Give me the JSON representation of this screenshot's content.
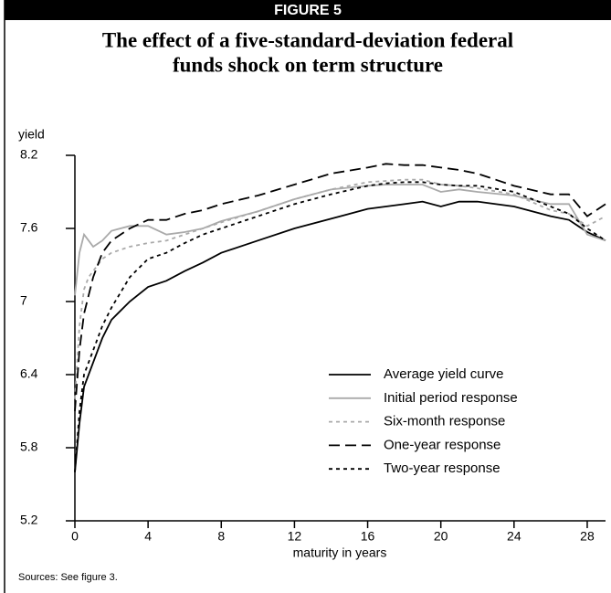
{
  "header": "FIGURE 5",
  "chart_data": {
    "type": "line",
    "title": "The effect of a five-standard-deviation federal",
    "subtitle": "funds shock on term structure",
    "ylabel": "yield",
    "xlabel": "maturity in years",
    "source": "Sources: See figure 3.",
    "x": [
      0,
      0.25,
      0.5,
      0.75,
      1,
      1.5,
      2,
      3,
      4,
      5,
      6,
      7,
      8,
      10,
      12,
      14,
      16,
      17,
      18,
      19,
      20,
      21,
      22,
      24,
      26,
      27,
      28,
      29
    ],
    "xlim": [
      0,
      29
    ],
    "xticks": [
      0,
      4,
      8,
      12,
      16,
      20,
      24,
      28
    ],
    "ylim": [
      5.2,
      8.2
    ],
    "yticks": [
      5.2,
      5.8,
      6.4,
      7.0,
      7.6,
      8.2
    ],
    "series": [
      {
        "name": "Average yield curve",
        "color": "#000000",
        "dash": "none",
        "values": [
          5.6,
          6.0,
          6.3,
          6.4,
          6.5,
          6.7,
          6.85,
          7.0,
          7.12,
          7.17,
          7.25,
          7.32,
          7.4,
          7.5,
          7.6,
          7.68,
          7.76,
          7.78,
          7.8,
          7.82,
          7.78,
          7.82,
          7.82,
          7.78,
          7.7,
          7.67,
          7.57,
          7.5
        ]
      },
      {
        "name": "Initial period response",
        "color": "#aaaaaa",
        "dash": "none",
        "values": [
          7.05,
          7.4,
          7.55,
          7.5,
          7.45,
          7.5,
          7.58,
          7.62,
          7.62,
          7.55,
          7.57,
          7.6,
          7.66,
          7.74,
          7.84,
          7.92,
          7.95,
          7.96,
          7.96,
          7.96,
          7.9,
          7.92,
          7.9,
          7.87,
          7.8,
          7.8,
          7.55,
          7.5
        ]
      },
      {
        "name": "Six-month response",
        "color": "#aaaaaa",
        "dash": "4,4",
        "values": [
          6.2,
          6.8,
          7.1,
          7.2,
          7.25,
          7.35,
          7.4,
          7.45,
          7.48,
          7.5,
          7.55,
          7.6,
          7.65,
          7.74,
          7.84,
          7.92,
          7.98,
          7.99,
          8.0,
          8.0,
          7.96,
          7.95,
          7.93,
          7.88,
          7.75,
          7.72,
          7.62,
          7.7
        ]
      },
      {
        "name": "One-year response",
        "color": "#000000",
        "dash": "12,6",
        "values": [
          6.1,
          6.6,
          6.9,
          7.05,
          7.2,
          7.4,
          7.5,
          7.6,
          7.67,
          7.67,
          7.72,
          7.75,
          7.8,
          7.87,
          7.96,
          8.05,
          8.1,
          8.13,
          8.12,
          8.12,
          8.1,
          8.08,
          8.05,
          7.95,
          7.88,
          7.88,
          7.7,
          7.8
        ]
      },
      {
        "name": "Two-year response",
        "color": "#000000",
        "dash": "4,4",
        "values": [
          5.6,
          6.1,
          6.4,
          6.5,
          6.6,
          6.8,
          6.95,
          7.2,
          7.35,
          7.4,
          7.48,
          7.55,
          7.6,
          7.7,
          7.8,
          7.88,
          7.95,
          7.97,
          7.98,
          7.98,
          7.96,
          7.95,
          7.95,
          7.9,
          7.78,
          7.72,
          7.6,
          7.5
        ]
      }
    ]
  }
}
